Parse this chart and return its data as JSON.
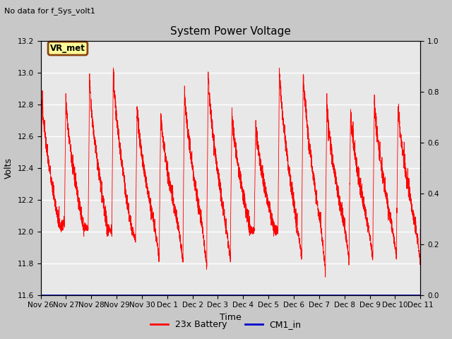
{
  "title": "System Power Voltage",
  "subtitle": "No data for f_Sys_volt1",
  "xlabel": "Time",
  "ylabel": "Volts",
  "ylim_left": [
    11.6,
    13.2
  ],
  "ylim_right": [
    0.0,
    1.0
  ],
  "yticks_left": [
    11.6,
    11.8,
    12.0,
    12.2,
    12.4,
    12.6,
    12.8,
    13.0,
    13.2
  ],
  "yticks_right": [
    0.0,
    0.2,
    0.4,
    0.6,
    0.8,
    1.0
  ],
  "fig_bg_color": "#c8c8c8",
  "plot_bg_outer": "#d0d0d0",
  "plot_bg_inner": "#e8e8e8",
  "line_color_battery": "#ff0000",
  "line_color_cm1": "#0000cc",
  "legend_battery": "23x Battery",
  "legend_cm1": "CM1_in",
  "vr_met_label": "VR_met",
  "vr_met_bg": "#ffff99",
  "vr_met_border": "#8b4513",
  "total_days": 15.0,
  "tick_days": [
    0,
    1,
    2,
    3,
    4,
    5,
    6,
    7,
    8,
    9,
    10,
    11,
    12,
    13,
    14,
    15
  ],
  "tick_labels": [
    "Nov 26",
    "Nov 27",
    "Nov 28",
    "Nov 29",
    "Nov 30",
    "Dec 1",
    "Dec 2",
    "Dec 3",
    "Dec 4",
    "Dec 5",
    "Dec 6",
    "Dec 7",
    "Dec 8",
    "Dec 9",
    "Dec 10",
    "Dec 11"
  ]
}
